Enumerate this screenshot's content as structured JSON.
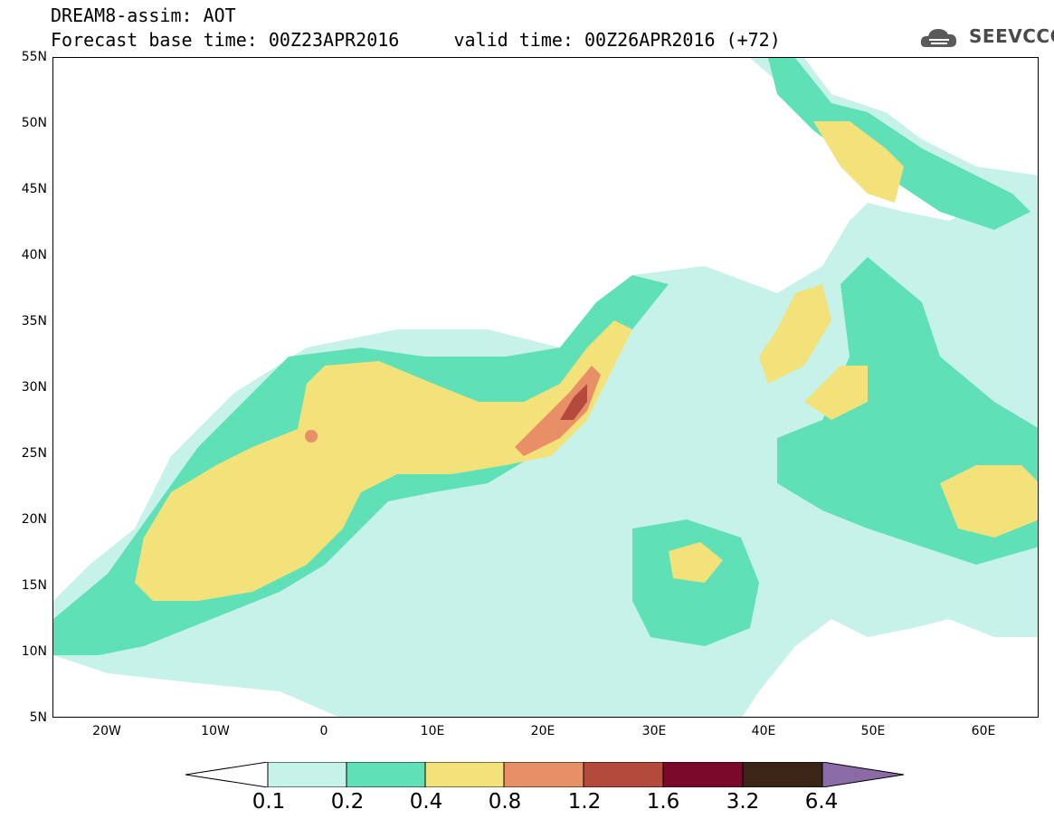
{
  "header": {
    "line1": "DREAM8-assim: AOT",
    "line2": "Forecast base time: 00Z23APR2016     valid time: 00Z26APR2016 (+72)"
  },
  "logo": {
    "text": "SEEVCCC",
    "icon": "cloud-icon"
  },
  "map": {
    "lat_labels": [
      "55N",
      "50N",
      "45N",
      "40N",
      "35N",
      "30N",
      "25N",
      "20N",
      "15N",
      "10N",
      "5N"
    ],
    "lon_labels": [
      "20W",
      "10W",
      "0",
      "10E",
      "20E",
      "30E",
      "40E",
      "50E",
      "60E"
    ]
  },
  "colorbar": {
    "labels": [
      "0.1",
      "0.2",
      "0.4",
      "0.8",
      "1.2",
      "1.6",
      "3.2",
      "6.4"
    ],
    "colors": [
      "#ffffff",
      "#c6f2ea",
      "#5fe0b7",
      "#f3e27a",
      "#e88f68",
      "#b44a3c",
      "#7b0a2a",
      "#3a2516",
      "#8b6aa8"
    ]
  },
  "colors": {
    "level_0_1": "#c6f2ea",
    "level_0_2": "#5fe0b7",
    "level_0_4": "#f3e27a",
    "level_0_8": "#e88f68",
    "level_1_2": "#b44a3c",
    "border": "#000000"
  }
}
